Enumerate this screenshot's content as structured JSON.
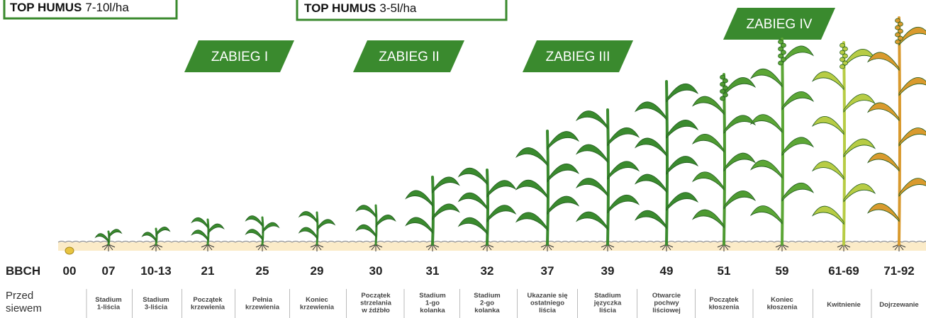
{
  "boxes": [
    {
      "product": "TOP HUMUS",
      "dose": "7-10l/ha"
    },
    {
      "product": "TOP HUMUS",
      "dose": "3-5l/ha"
    }
  ],
  "treatments": [
    "ZABIEG I",
    "ZABIEG II",
    "ZABIEG III",
    "ZABIEG IV"
  ],
  "scale_label": "BBCH",
  "stages": [
    {
      "code": "00",
      "description": [
        "Przed",
        "siewem"
      ]
    },
    {
      "code": "07",
      "description": [
        "Stadium",
        "1-liścia"
      ]
    },
    {
      "code": "10-13",
      "description": [
        "Stadium",
        "3-liścia"
      ]
    },
    {
      "code": "21",
      "description": [
        "Początek",
        "krzewienia"
      ]
    },
    {
      "code": "25",
      "description": [
        "Pełnia",
        "krzewienia"
      ]
    },
    {
      "code": "29",
      "description": [
        "Koniec",
        "krzewienia"
      ]
    },
    {
      "code": "30",
      "description": [
        "Początek",
        "strzelania",
        "w źdźbło"
      ]
    },
    {
      "code": "31",
      "description": [
        "Stadium",
        "1-go",
        "kolanka"
      ]
    },
    {
      "code": "32",
      "description": [
        "Stadium",
        "2-go",
        "kolanka"
      ]
    },
    {
      "code": "37",
      "description": [
        "Ukazanie się",
        "ostatniego",
        "liścia"
      ]
    },
    {
      "code": "39",
      "description": [
        "Stadium",
        "języczka",
        "liścia"
      ]
    },
    {
      "code": "49",
      "description": [
        "Otwarcie",
        "pochwy",
        "liściowej"
      ]
    },
    {
      "code": "51",
      "description": [
        "Początek",
        "kłoszenia"
      ]
    },
    {
      "code": "59",
      "description": [
        "Koniec",
        "kłoszenia"
      ]
    },
    {
      "code": "61-69",
      "description": [
        "Kwitnienie"
      ]
    },
    {
      "code": "71-92",
      "description": [
        "Dojrzewanie"
      ]
    }
  ]
}
